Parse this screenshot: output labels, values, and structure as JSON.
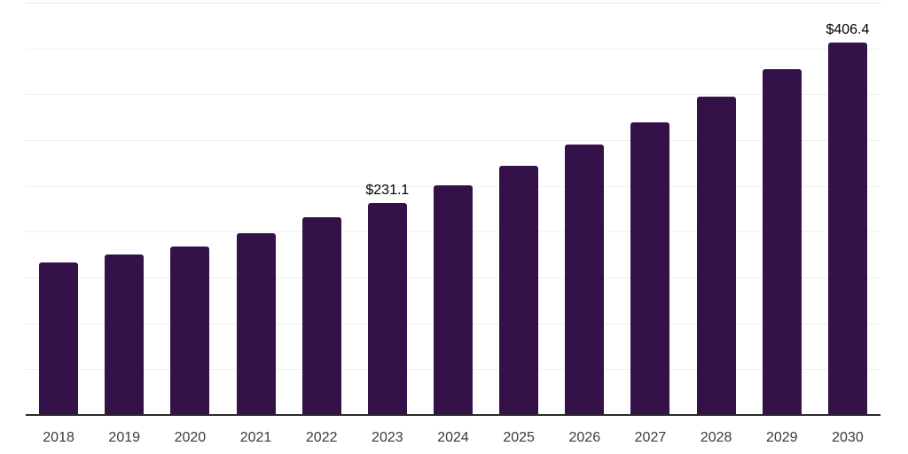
{
  "chart_data": {
    "type": "bar",
    "title": "",
    "xlabel": "",
    "ylabel": "",
    "categories": [
      "2018",
      "2019",
      "2020",
      "2021",
      "2022",
      "2023",
      "2024",
      "2025",
      "2026",
      "2027",
      "2028",
      "2029",
      "2030"
    ],
    "values": [
      166,
      175,
      184,
      198,
      216,
      231.1,
      251,
      272,
      295,
      319,
      347,
      377,
      406.4
    ],
    "data_labels": {
      "2023": "$231.1",
      "2030": "$406.4"
    },
    "ylim": [
      0,
      450
    ],
    "gridline_step": 50,
    "grid": true,
    "legend": false,
    "y_axis_labels_visible": false,
    "colors": {
      "bar": "#351149",
      "axis": "#2b2b2b",
      "grid": "#efefef",
      "grid_top": "#e7e7e7",
      "value_label": "#000000",
      "tick_label": "#3a3a3a",
      "background": "#ffffff"
    }
  }
}
